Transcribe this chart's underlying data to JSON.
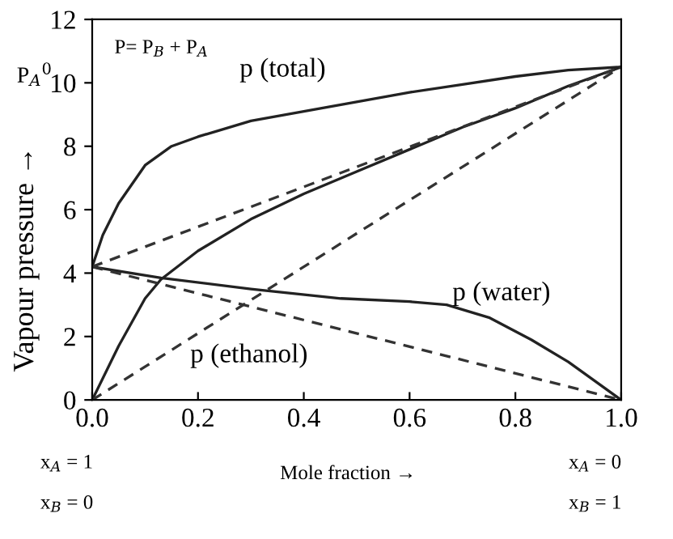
{
  "chart_data": {
    "type": "line",
    "xlabel": "Mole fraction →",
    "ylabel": "Vapour pressure →",
    "xlim": [
      0,
      1
    ],
    "ylim": [
      0,
      12
    ],
    "xticks": [
      {
        "value": 0,
        "label": "0.0"
      },
      {
        "value": 0.2,
        "label": "0.2"
      },
      {
        "value": 0.4,
        "label": "0.4"
      },
      {
        "value": 0.6,
        "label": "0.6"
      },
      {
        "value": 0.8,
        "label": "0.8"
      },
      {
        "value": 1,
        "label": "1.0"
      }
    ],
    "yticks": [
      0,
      2,
      4,
      6,
      8,
      10,
      12
    ],
    "grid": false,
    "legend": false,
    "marker": "none",
    "series": [
      {
        "color": "#222222",
        "line_style": "solid",
        "x": [
          0,
          0.02,
          0.05,
          0.1,
          0.15,
          0.2,
          0.3,
          0.4,
          0.5,
          0.6,
          0.7,
          0.8,
          0.9,
          1
        ],
        "values": [
          4.2,
          5.2,
          6.2,
          7.4,
          8.0,
          8.3,
          8.8,
          9.1,
          9.4,
          9.7,
          9.95,
          10.2,
          10.4,
          10.5
        ]
      },
      {
        "color": "#222222",
        "line_style": "solid",
        "x": [
          0,
          0.05,
          0.1,
          0.13,
          0.2,
          0.3,
          0.4,
          0.5,
          0.6,
          0.7,
          0.8,
          0.9,
          1
        ],
        "values": [
          0,
          1.7,
          3.2,
          3.8,
          4.7,
          5.7,
          6.5,
          7.2,
          7.9,
          8.6,
          9.2,
          9.9,
          10.5
        ]
      },
      {
        "color": "#222222",
        "line_style": "solid",
        "x": [
          0,
          0.13,
          0.3,
          0.47,
          0.6,
          0.67,
          0.75,
          0.83,
          0.9,
          0.95,
          1
        ],
        "values": [
          4.2,
          3.85,
          3.5,
          3.2,
          3.1,
          3.0,
          2.6,
          1.9,
          1.2,
          0.6,
          0
        ]
      },
      {
        "color": "#333333",
        "line_style": "dashed",
        "x": [
          0,
          1
        ],
        "values": [
          4.2,
          10.5
        ]
      },
      {
        "color": "#333333",
        "line_style": "dashed",
        "x": [
          0,
          1
        ],
        "values": [
          0,
          10.5
        ]
      },
      {
        "color": "#333333",
        "line_style": "dashed",
        "x": [
          0,
          1
        ],
        "values": [
          4.2,
          0
        ]
      }
    ],
    "annotations": [
      "p (total)",
      "p (ethanol)",
      "p (water)",
      "P= P$_{B}$ + P$_{A}$",
      "P$_{A}$$^{0}$",
      "x$_{A}$ = 1",
      "x$_{B}$ = 0",
      "x$_{A}$ = 0",
      "x$_{B}$ = 1"
    ]
  }
}
